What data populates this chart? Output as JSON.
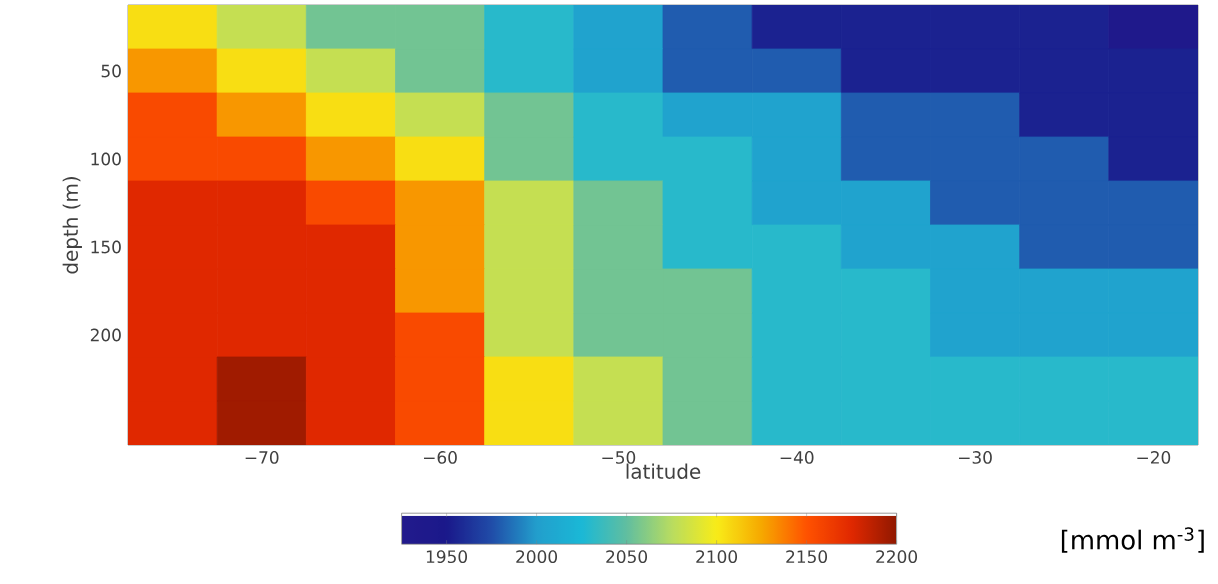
{
  "chart_data": {
    "type": "heatmap",
    "xlabel": "latitude",
    "ylabel": "depth (m)",
    "clabel": "[mmol m$^{-3}$]",
    "categories": [
      null,
      "−70",
      null,
      "−60",
      null,
      "−50",
      null,
      "−40",
      null,
      "−30",
      null,
      "−20"
    ],
    "y_categories": [
      null,
      "50",
      null,
      "100",
      null,
      "150",
      null,
      "200",
      null,
      null
    ],
    "cells": [
      [
        2105,
        2080,
        2055,
        2055,
        2030,
        2005,
        1980,
        1955,
        1955,
        1955,
        1955,
        1935
      ],
      [
        2130,
        2105,
        2080,
        2055,
        2030,
        2005,
        1980,
        1980,
        1955,
        1955,
        1955,
        1955
      ],
      [
        2155,
        2130,
        2105,
        2080,
        2055,
        2030,
        2005,
        2005,
        1980,
        1980,
        1955,
        1955
      ],
      [
        2155,
        2155,
        2130,
        2105,
        2055,
        2030,
        2030,
        2005,
        1980,
        1980,
        1980,
        1955
      ],
      [
        2175,
        2175,
        2155,
        2130,
        2080,
        2055,
        2030,
        2005,
        2005,
        1980,
        1980,
        1980
      ],
      [
        2175,
        2175,
        2175,
        2130,
        2080,
        2055,
        2030,
        2030,
        2005,
        2005,
        1980,
        1980
      ],
      [
        2175,
        2175,
        2175,
        2130,
        2080,
        2055,
        2055,
        2030,
        2030,
        2005,
        2005,
        2005
      ],
      [
        2175,
        2175,
        2175,
        2155,
        2080,
        2055,
        2055,
        2030,
        2030,
        2005,
        2005,
        2005
      ],
      [
        2175,
        2195,
        2175,
        2155,
        2105,
        2080,
        2055,
        2030,
        2030,
        2030,
        2030,
        2030
      ],
      [
        2175,
        2195,
        2175,
        2155,
        2105,
        2080,
        2055,
        2030,
        2030,
        2030,
        2030,
        2030
      ]
    ],
    "clim": [
      1925,
      2200
    ],
    "cticks": [
      1950,
      2000,
      2050,
      2100,
      2150,
      2200
    ]
  }
}
